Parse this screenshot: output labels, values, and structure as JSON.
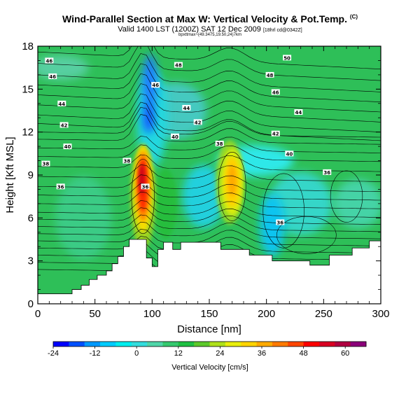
{
  "chart_data": {
    "type": "heatmap",
    "title_main": "Wind-Parallel Section at Max W: Vertical Velocity & Pot.Temp.",
    "title_mark": "(C)",
    "subtitle": "Valid 1400 LST (1200Z) SAT 12 Dec 2009",
    "subtitle_small": "[18hrl cd@0342Z]",
    "subtitle2": "bpxttmax~(49.3475,19.50,24)7km",
    "xlabel": "Distance [nm]",
    "ylabel": "Height [Kft MSL]",
    "xlim": [
      0,
      300
    ],
    "ylim": [
      0,
      18
    ],
    "xticks": [
      0,
      50,
      100,
      150,
      200,
      250,
      300
    ],
    "yticks": [
      0,
      3,
      6,
      9,
      12,
      15,
      18
    ],
    "colorbar": {
      "label": "Vertical Velocity [cm/s]",
      "range": [
        -24,
        66
      ],
      "ticks": [
        -24,
        -12,
        0,
        12,
        24,
        36,
        48,
        60
      ],
      "colors": [
        "#0000ff",
        "#0050ff",
        "#0099ff",
        "#00ccff",
        "#00eeee",
        "#33dddd",
        "#4fd6a8",
        "#35c96e",
        "#1ec041",
        "#5cc92a",
        "#aee01a",
        "#e8ee0c",
        "#ffd400",
        "#ffaa00",
        "#ff7a00",
        "#ff4500",
        "#ff0000",
        "#d90022",
        "#b00040",
        "#8b007a"
      ]
    },
    "theta_contour_labels": [
      {
        "x": 10,
        "y": 17.0,
        "label": "46"
      },
      {
        "x": 13,
        "y": 15.9,
        "label": "46"
      },
      {
        "x": 21,
        "y": 14.0,
        "label": "44"
      },
      {
        "x": 23,
        "y": 12.5,
        "label": "42"
      },
      {
        "x": 26,
        "y": 11.0,
        "label": "40"
      },
      {
        "x": 7,
        "y": 9.8,
        "label": "38"
      },
      {
        "x": 20,
        "y": 8.2,
        "label": "36"
      },
      {
        "x": 78,
        "y": 10.0,
        "label": "38"
      },
      {
        "x": 94,
        "y": 8.2,
        "label": "36"
      },
      {
        "x": 103,
        "y": 15.3,
        "label": "46"
      },
      {
        "x": 123,
        "y": 16.7,
        "label": "48"
      },
      {
        "x": 130,
        "y": 13.7,
        "label": "44"
      },
      {
        "x": 140,
        "y": 12.7,
        "label": "42"
      },
      {
        "x": 120,
        "y": 11.7,
        "label": "40"
      },
      {
        "x": 159,
        "y": 11.2,
        "label": "38"
      },
      {
        "x": 218,
        "y": 17.2,
        "label": "50"
      },
      {
        "x": 203,
        "y": 16.0,
        "label": "48"
      },
      {
        "x": 208,
        "y": 14.8,
        "label": "46"
      },
      {
        "x": 228,
        "y": 13.4,
        "label": "44"
      },
      {
        "x": 208,
        "y": 11.9,
        "label": "42"
      },
      {
        "x": 220,
        "y": 10.5,
        "label": "40"
      },
      {
        "x": 253,
        "y": 9.2,
        "label": "36"
      },
      {
        "x": 212,
        "y": 5.7,
        "label": "36"
      }
    ],
    "w_maxima": [
      {
        "x": 92,
        "y": 8.5,
        "value": 60
      },
      {
        "x": 170,
        "y": 8.5,
        "value": 30
      }
    ]
  }
}
